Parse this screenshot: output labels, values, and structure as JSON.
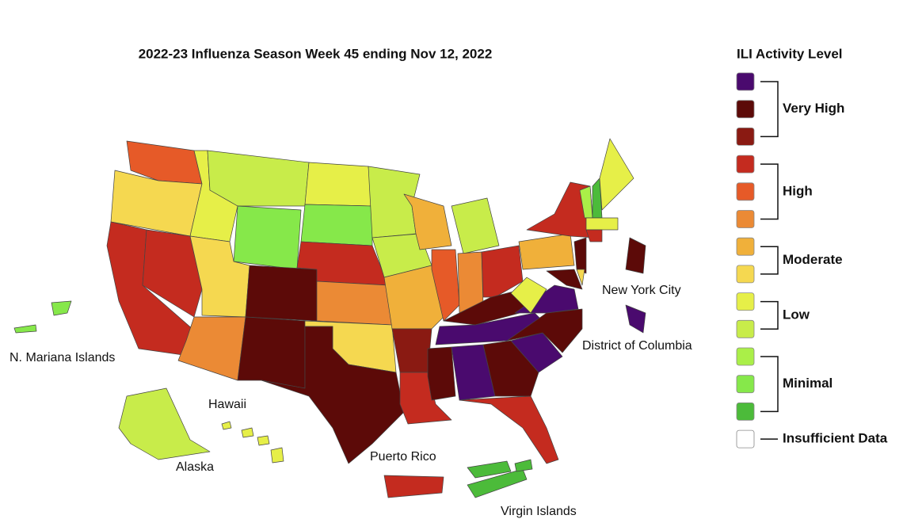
{
  "title": "2022-23 Influenza Season Week 45 ending Nov 12, 2022",
  "legend": {
    "title": "ILI Activity Level",
    "groups": [
      {
        "label": "Very High",
        "colors": [
          "#4a0a6e",
          "#5c0a08",
          "#8a1a12"
        ]
      },
      {
        "label": "High",
        "colors": [
          "#c42b1f",
          "#e65a28",
          "#eb8a35"
        ]
      },
      {
        "label": "Moderate",
        "colors": [
          "#f0b03a",
          "#f5d850"
        ]
      },
      {
        "label": "Low",
        "colors": [
          "#e6ef48",
          "#c8ec4a"
        ]
      },
      {
        "label": "Minimal",
        "colors": [
          "#aaef48",
          "#86e84a",
          "#4cbb3a"
        ]
      },
      {
        "label": "Insufficient Data",
        "colors": [
          "#ffffff"
        ]
      }
    ]
  },
  "region_labels": [
    "N. Mariana Islands",
    "Hawaii",
    "Alaska",
    "Puerto Rico",
    "Virgin Islands",
    "New York City",
    "District of Columbia"
  ]
}
